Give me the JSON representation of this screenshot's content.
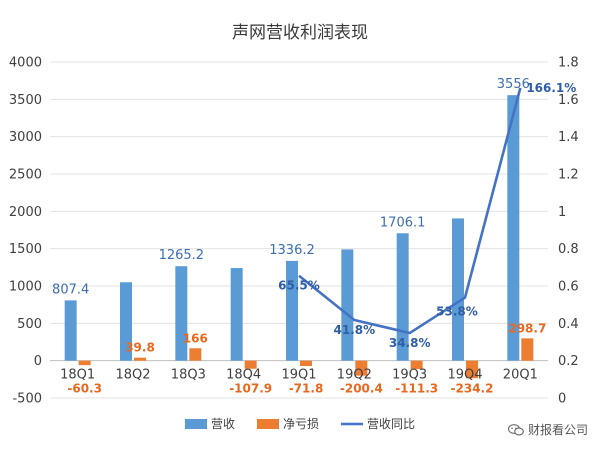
{
  "chart_data": {
    "type": "bar",
    "title": "声网营收利润表现",
    "categories": [
      "18Q1",
      "18Q2",
      "18Q3",
      "18Q4",
      "19Q1",
      "19Q2",
      "19Q3",
      "19Q4",
      "20Q1"
    ],
    "series": [
      {
        "name": "营收",
        "type": "bar",
        "axis": "left",
        "color": "#5b9bd5",
        "values": [
          807.4,
          1050,
          1265.2,
          1240,
          1336.2,
          1490,
          1706.1,
          1905,
          3556
        ],
        "labels": [
          "807.4",
          "",
          "1265.2",
          "",
          "1336.2",
          "",
          "1706.1",
          "",
          "3556"
        ]
      },
      {
        "name": "净亏损",
        "type": "bar",
        "axis": "left",
        "color": "#ed7d31",
        "values": [
          -60.3,
          39.8,
          166,
          -107.9,
          -71.8,
          -200.4,
          -111.3,
          -234.2,
          298.7
        ],
        "labels": [
          "-60.3",
          "39.8",
          "166",
          "-107.9",
          "-71.8",
          "-200.4",
          "-111.3",
          "-234.2",
          "298.7"
        ]
      },
      {
        "name": "营收同比",
        "type": "line",
        "axis": "right",
        "color": "#4472c4",
        "values": [
          null,
          null,
          null,
          null,
          0.655,
          0.418,
          0.348,
          0.538,
          1.661
        ],
        "labels": [
          "",
          "",
          "",
          "",
          "65.5%",
          "41.8%",
          "34.8%",
          "53.8%",
          "166.1%"
        ]
      }
    ],
    "ylim_left": [
      -500,
      4000
    ],
    "yticks_left": [
      -500,
      0,
      500,
      1000,
      1500,
      2000,
      2500,
      3000,
      3500,
      4000
    ],
    "ylim_right": [
      0,
      1.8
    ],
    "yticks_right": [
      "0",
      "0.2",
      "0.4",
      "0.6",
      "0.8",
      "1",
      "1.2",
      "1.4",
      "1.6",
      "1.8"
    ],
    "legend_position": "bottom",
    "grid": true
  },
  "watermark": {
    "text": "财报看公司",
    "icon": "wechat-icon"
  }
}
